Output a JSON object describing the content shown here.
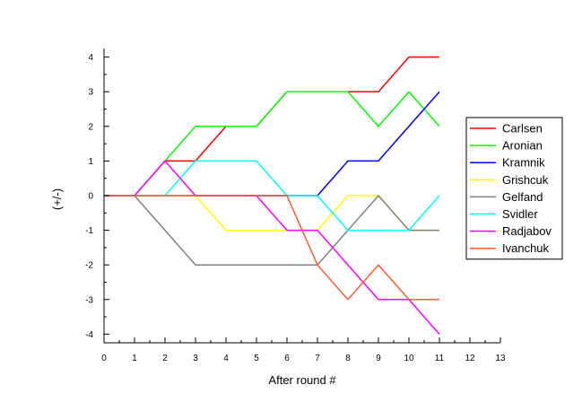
{
  "chart_data": {
    "type": "line",
    "xlabel": "After round #",
    "ylabel": "(+/-)",
    "xlim": [
      0,
      13
    ],
    "ylim": [
      -4.25,
      4.25
    ],
    "xticks": [
      0,
      1,
      2,
      3,
      4,
      5,
      6,
      7,
      8,
      9,
      10,
      11,
      12,
      13
    ],
    "yticks": [
      -4,
      -3,
      -2,
      -1,
      0,
      1,
      2,
      3,
      4
    ],
    "grid": false,
    "legend_position": "right",
    "x": [
      0,
      1,
      2,
      3,
      4,
      5,
      6,
      7,
      8,
      9,
      10,
      11
    ],
    "series": [
      {
        "name": "Carlsen",
        "color": "#ff0000",
        "values": [
          0,
          0,
          1,
          1,
          2,
          2,
          3,
          3,
          3,
          3,
          4,
          4
        ]
      },
      {
        "name": "Aronian",
        "color": "#00ff00",
        "values": [
          0,
          0,
          1,
          2,
          2,
          2,
          3,
          3,
          3,
          2,
          3,
          2
        ]
      },
      {
        "name": "Kramnik",
        "color": "#0000ff",
        "values": [
          0,
          0,
          0,
          0,
          0,
          0,
          0,
          0,
          1,
          1,
          2,
          3
        ]
      },
      {
        "name": "Grishcuk",
        "color": "#ffff00",
        "values": [
          0,
          0,
          0,
          0,
          -1,
          -1,
          -1,
          -1,
          0,
          0,
          -1,
          -1
        ]
      },
      {
        "name": "Gelfand",
        "color": "#808080",
        "values": [
          0,
          0,
          -1,
          -2,
          -2,
          -2,
          -2,
          -2,
          -1,
          0,
          -1,
          -1
        ]
      },
      {
        "name": "Svidler",
        "color": "#00ffff",
        "values": [
          0,
          0,
          0,
          1,
          1,
          1,
          0,
          0,
          -1,
          -1,
          -1,
          0
        ]
      },
      {
        "name": "Radjabov",
        "color": "#ff00ff",
        "values": [
          0,
          0,
          1,
          0,
          0,
          0,
          -1,
          -1,
          -2,
          -3,
          -3,
          -4
        ]
      },
      {
        "name": "Ivanchuk",
        "color": "#ff5a32",
        "values": [
          0,
          0,
          0,
          0,
          0,
          0,
          0,
          -2,
          -3,
          -2,
          -3,
          -3
        ]
      }
    ]
  }
}
